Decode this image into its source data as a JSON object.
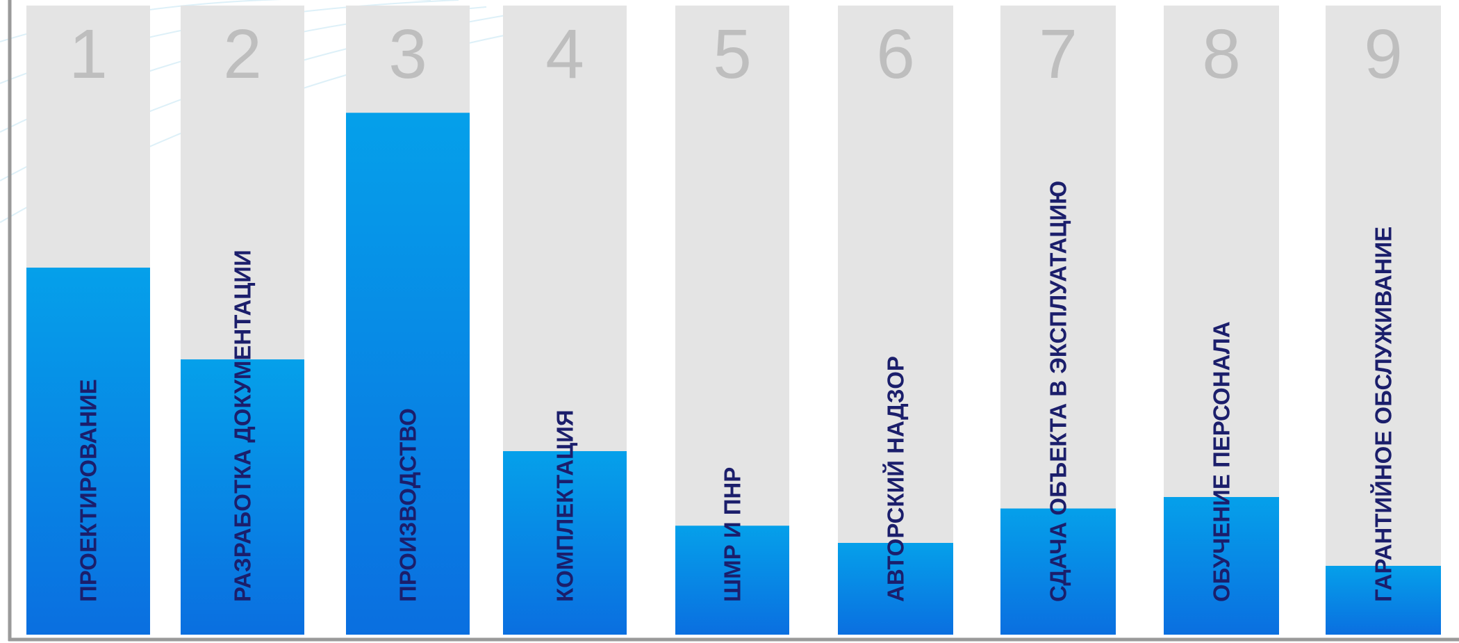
{
  "chart_data": {
    "type": "bar",
    "categories": [
      "ПРОЕКТИРОВАНИЕ",
      "РАЗРАБОТКА ДОКУМЕНТАЦИИ",
      "ПРОИЗВОДСТВО",
      "КОМПЛЕКТАЦИЯ",
      "ШМР И ПНР",
      "АВТОРСКИЙ НАДЗОР",
      "СДАЧА ОБЪЕКТА В ЭКСПЛУАТАЦИЮ",
      "ОБУЧЕНИЕ ПЕРСОНАЛА",
      "ГАРАНТИЙНОЕ ОБСЛУЖИВАНИЕ"
    ],
    "numbers": [
      "1",
      "2",
      "3",
      "4",
      "5",
      "6",
      "7",
      "8",
      "9"
    ],
    "values": [
      0.64,
      0.48,
      0.91,
      0.32,
      0.19,
      0.16,
      0.22,
      0.24,
      0.12
    ],
    "ylim": [
      0,
      1
    ],
    "grid": false,
    "colors": {
      "bar_top": "#05a0ea",
      "bar_bottom": "#0a6fe0",
      "track": "#e4e4e4",
      "label": "#1b1e6b",
      "number": "#b8b8b8",
      "axis": "#9a9a9a"
    }
  }
}
